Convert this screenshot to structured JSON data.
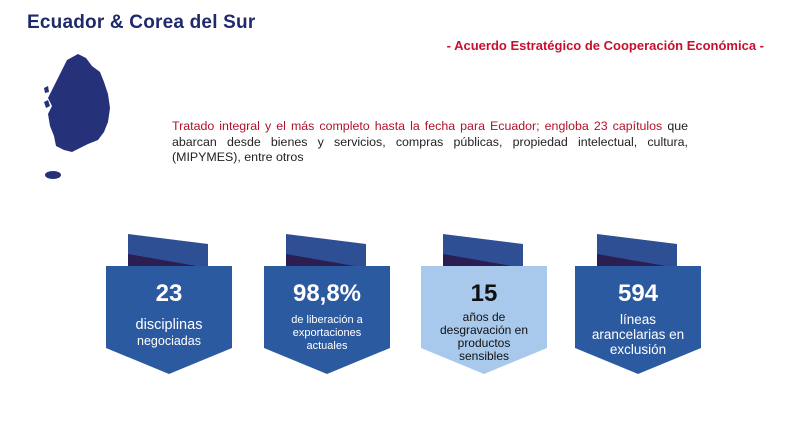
{
  "header": {
    "title": "Ecuador & Corea del Sur",
    "subtitle": "- Acuerdo Estratégico de Cooperación Económica -"
  },
  "description": {
    "red_part": "Tratado integral y el más completo hasta la fecha para Ecuador; engloba 23 capítulos",
    "rest": " que abarcan desde bienes y servicios, compras públicas, propiedad intelectual, cultura, (MIPYMES), entre otros"
  },
  "map_icon": "south-korea-map-icon",
  "colors": {
    "navy": "#1f2a6b",
    "red": "#c8102e",
    "card_dark": "#2c5aa0",
    "card_light": "#a9c9ec",
    "fold_top": "#2f4f94",
    "fold_dark": "#2a1e52"
  },
  "cards": [
    {
      "value": "23",
      "label_1": "disciplinas",
      "label_2": "negociadas"
    },
    {
      "value": "98,8%",
      "label_1": "de liberación a",
      "label_2": "exportaciones",
      "label_3": "actuales"
    },
    {
      "value": "15",
      "label_1": "años de",
      "label_2": "desgravación en",
      "label_3": "productos",
      "label_4": "sensibles"
    },
    {
      "value": "594",
      "label_1": "líneas",
      "label_2": "arancelarias en",
      "label_3": "exclusión"
    }
  ]
}
